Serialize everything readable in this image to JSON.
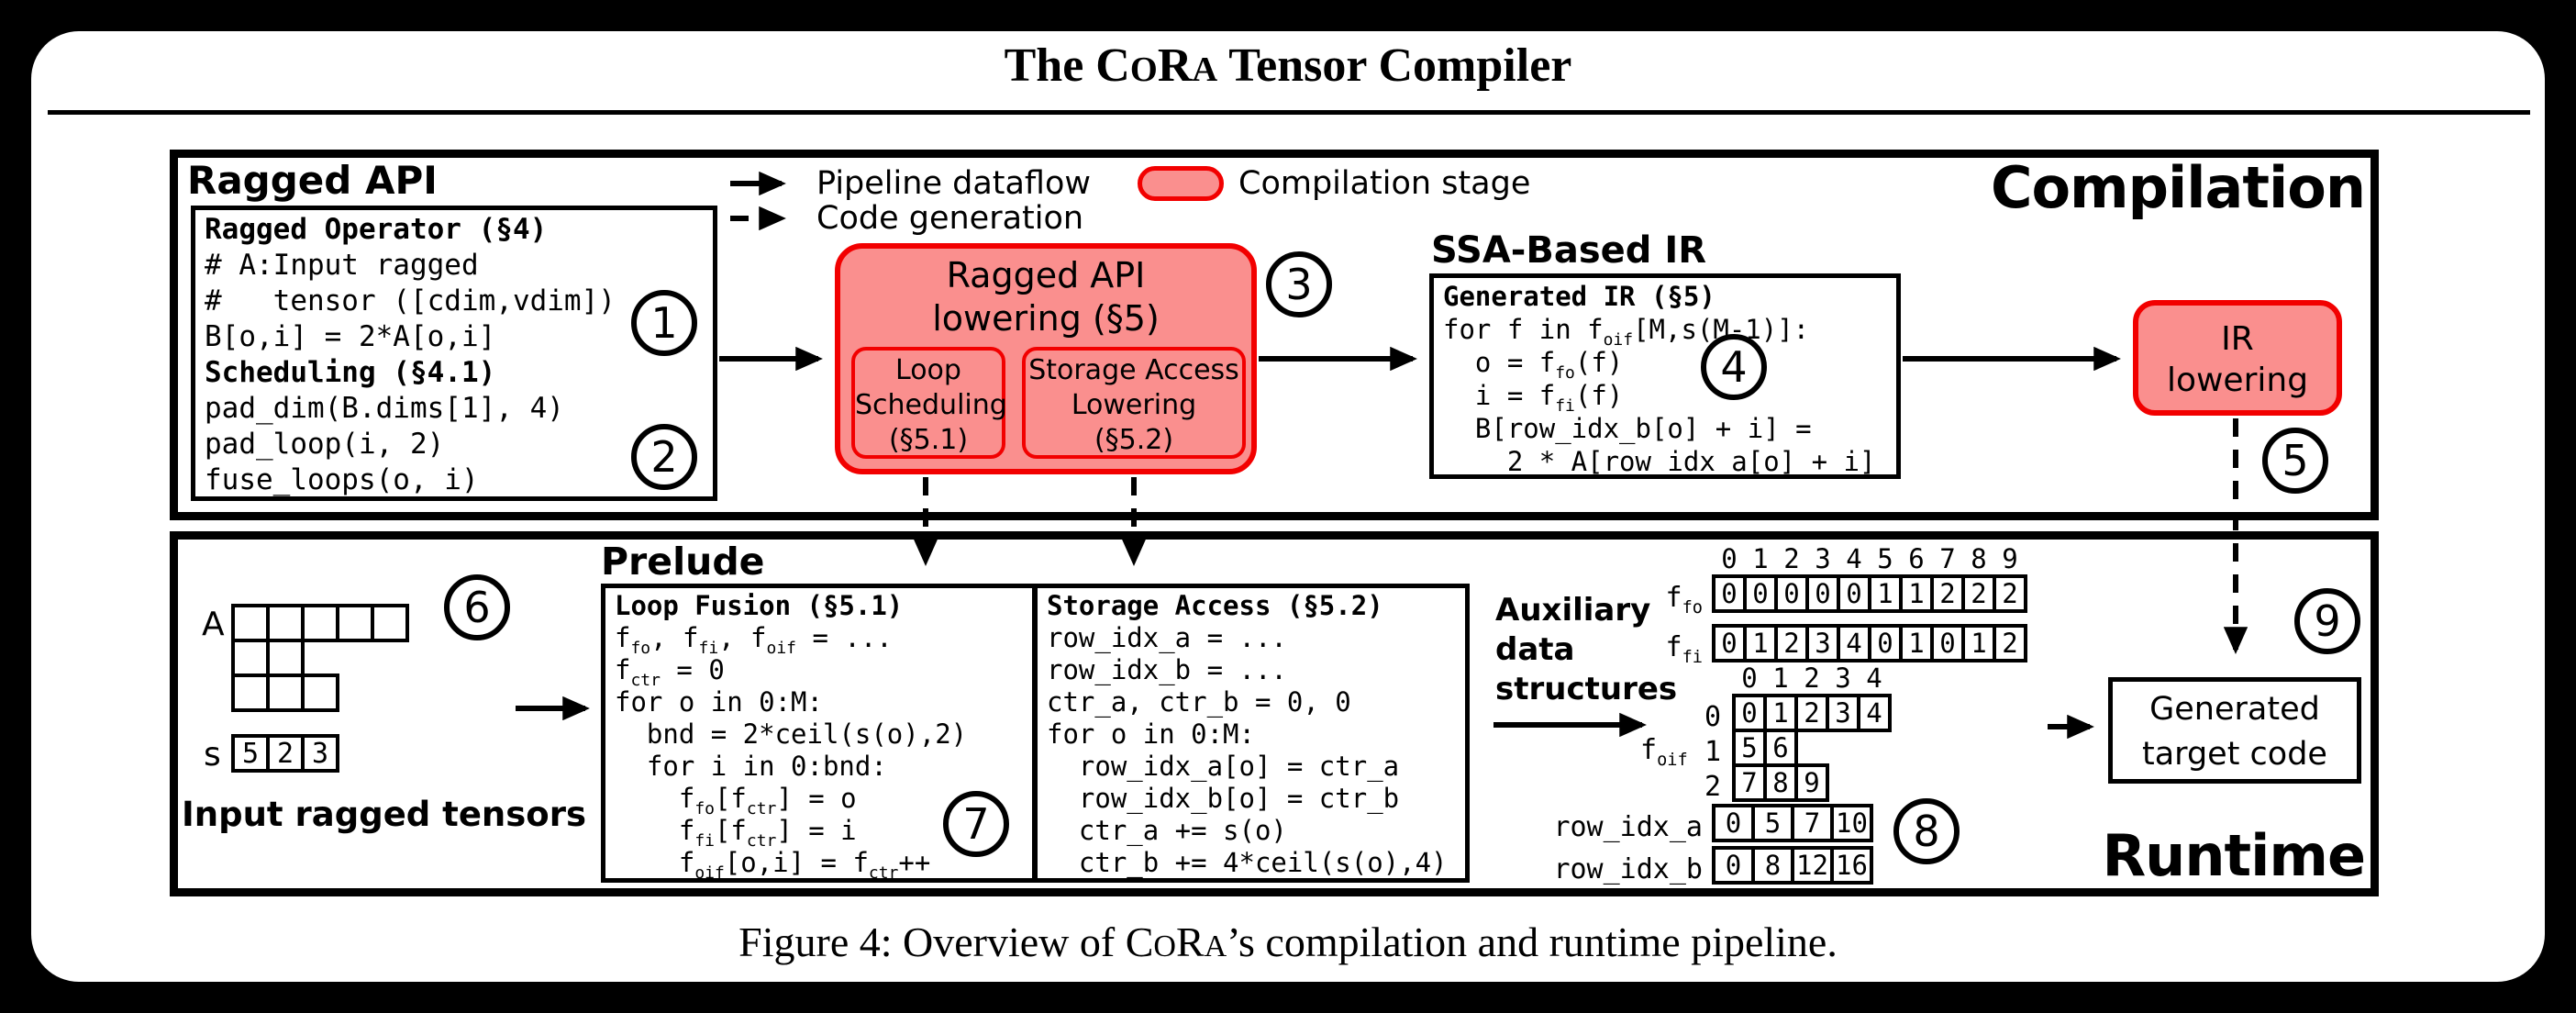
{
  "title": {
    "pre": "The C",
    "sc1": "O",
    "mid": "R",
    "sc2": "A",
    "post": " Tensor Compiler"
  },
  "caption": {
    "pre": "Figure 4: Overview of C",
    "sc1": "O",
    "mid": "R",
    "sc2": "A",
    "post": "’s compilation and runtime pipeline."
  },
  "legend": {
    "dataflow": "Pipeline dataflow",
    "codegen": "Code generation",
    "stage": "Compilation stage"
  },
  "steps": [
    "1",
    "2",
    "3",
    "4",
    "5",
    "6",
    "7",
    "8",
    "9"
  ],
  "colors": {
    "stage_fill": "#FA8F8E",
    "stage_border": "#F20000",
    "ink": "#000000"
  },
  "compilation": {
    "label": "Compilation",
    "ragged_api": {
      "heading": "Ragged API",
      "code": [
        {
          "t": "Ragged Operator (§4)",
          "b": true
        },
        {
          "t": "# A:Input ragged"
        },
        {
          "t": "#   tensor ([cdim,vdim])"
        },
        {
          "t": "B[o,i] = 2*A[o,i]"
        },
        {
          "t": "Scheduling (§4.1)",
          "b": true
        },
        {
          "t": "pad_dim(B.dims[1], 4)"
        },
        {
          "t": "pad_loop(i, 2)"
        },
        {
          "t": "fuse_loops(o, i)"
        }
      ]
    },
    "lowering": {
      "title_line1": "Ragged API",
      "title_line2": "lowering (§5)",
      "sub1": [
        "Loop",
        "Scheduling",
        "(§5.1)"
      ],
      "sub2": [
        "Storage Access",
        "Lowering",
        "(§5.2)"
      ]
    },
    "ssa": {
      "heading": "SSA-Based IR",
      "code": [
        {
          "t": "Generated IR (§5)",
          "b": true
        },
        {
          "t": "for f in f_{oif}[M,s(M-1)]:"
        },
        {
          "t": "  o = f_{fo}(f)"
        },
        {
          "t": "  i = f_{fi}(f)"
        },
        {
          "t": "  B[row_idx_b[o] + i] ="
        },
        {
          "t": "    2 * A[row_idx_a[o] + i]"
        }
      ]
    },
    "ir_lowering": {
      "line1": "IR",
      "line2": "lowering"
    }
  },
  "runtime": {
    "label": "Runtime",
    "input": {
      "tensor_label": "A",
      "row_cells": [
        [
          "",
          "",
          "",
          "",
          ""
        ],
        [
          "",
          ""
        ],
        [
          "",
          "",
          ""
        ]
      ],
      "s_label": "s",
      "s_values": [
        "5",
        "2",
        "3"
      ],
      "caption": "Input ragged tensors"
    },
    "prelude": {
      "heading": "Prelude",
      "loop_fusion": [
        {
          "t": "Loop Fusion (§5.1)",
          "b": true
        },
        {
          "t": "f_{fo}, f_{fi}, f_{oif} = ..."
        },
        {
          "t": "f_{ctr} = 0"
        },
        {
          "t": "for o in 0:M:"
        },
        {
          "t": "  bnd = 2*ceil(s(o),2)"
        },
        {
          "t": "  for i in 0:bnd:"
        },
        {
          "t": "    f_{fo}[f_{ctr}] = o"
        },
        {
          "t": "    f_{fi}[f_{ctr}] = i"
        },
        {
          "t": "    f_{oif}[o,i] = f_{ctr}++"
        }
      ],
      "storage_access": [
        {
          "t": "Storage Access (§5.2)",
          "b": true
        },
        {
          "t": "row_idx_a = ..."
        },
        {
          "t": "row_idx_b = ..."
        },
        {
          "t": "ctr_a, ctr_b = 0, 0"
        },
        {
          "t": "for o in 0:M:"
        },
        {
          "t": "  row_idx_a[o] = ctr_a"
        },
        {
          "t": "  row_idx_b[o] = ctr_b"
        },
        {
          "t": "  ctr_a += s(o)"
        },
        {
          "t": "  ctr_b += 4*ceil(s(o),4)"
        }
      ]
    },
    "aux": {
      "label_lines": [
        "Auxiliary",
        "data",
        "structures"
      ],
      "top_header": [
        "0",
        "1",
        "2",
        "3",
        "4",
        "5",
        "6",
        "7",
        "8",
        "9"
      ],
      "f_fo_label": "f_{fo}",
      "f_fo": [
        "0",
        "0",
        "0",
        "0",
        "0",
        "1",
        "1",
        "2",
        "2",
        "2"
      ],
      "f_fi_label": "f_{fi}",
      "f_fi": [
        "0",
        "1",
        "2",
        "3",
        "4",
        "0",
        "1",
        "0",
        "1",
        "2"
      ],
      "oif_header": [
        "0",
        "1",
        "2",
        "3",
        "4"
      ],
      "f_oif_label": "f_{oif}",
      "oif_row_labels": [
        "0",
        "1",
        "2"
      ],
      "f_oif": [
        [
          "0",
          "1",
          "2",
          "3",
          "4"
        ],
        [
          "5",
          "6"
        ],
        [
          "7",
          "8",
          "9"
        ]
      ],
      "row_idx_a_label": "row_idx_a",
      "row_idx_a": [
        "0",
        "5",
        "7",
        "10"
      ],
      "row_idx_b_label": "row_idx_b",
      "row_idx_b": [
        "0",
        "8",
        "12",
        "16"
      ]
    },
    "target": {
      "line1": "Generated",
      "line2": "target code"
    }
  }
}
